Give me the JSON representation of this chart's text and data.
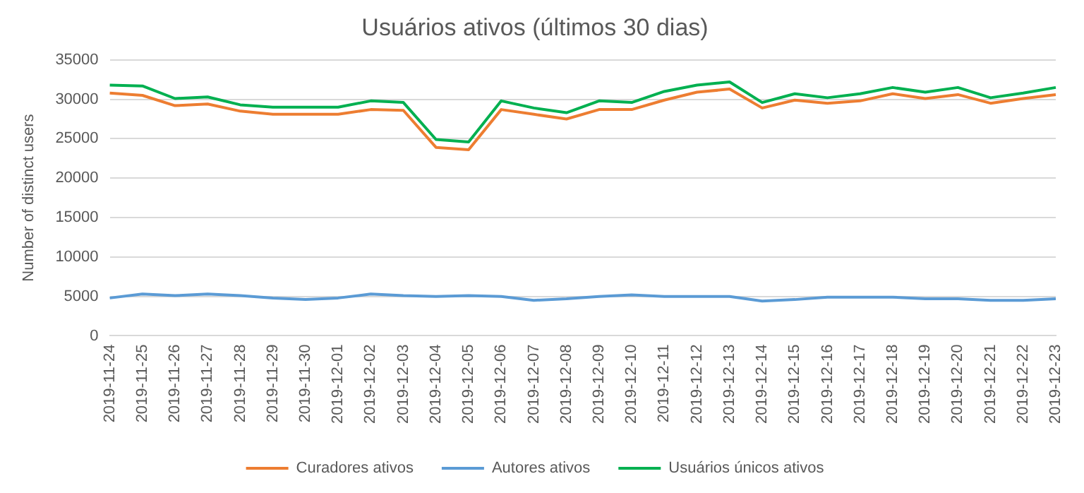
{
  "chart_data": {
    "type": "line",
    "title": "Usuários ativos (últimos 30 dias)",
    "ylabel": "Number of distinct users",
    "categories": [
      "2019-11-24",
      "2019-11-25",
      "2019-11-26",
      "2019-11-27",
      "2019-11-28",
      "2019-11-29",
      "2019-11-30",
      "2019-12-01",
      "2019-12-02",
      "2019-12-03",
      "2019-12-04",
      "2019-12-05",
      "2019-12-06",
      "2019-12-07",
      "2019-12-08",
      "2019-12-09",
      "2019-12-10",
      "2019-12-11",
      "2019-12-12",
      "2019-12-13",
      "2019-12-14",
      "2019-12-15",
      "2019-12-16",
      "2019-12-17",
      "2019-12-18",
      "2019-12-19",
      "2019-12-20",
      "2019-12-21",
      "2019-12-22",
      "2019-12-23"
    ],
    "series": [
      {
        "name": "Curadores ativos",
        "color": "#ed7d31",
        "values": [
          30800,
          30500,
          29200,
          29400,
          28500,
          28100,
          28100,
          28100,
          28700,
          28600,
          23900,
          23600,
          28700,
          28100,
          27500,
          28700,
          28700,
          29900,
          30900,
          31300,
          28900,
          29900,
          29500,
          29800,
          30700,
          30100,
          30600,
          29500,
          30100,
          30600
        ]
      },
      {
        "name": "Autores ativos",
        "color": "#5b9bd5",
        "values": [
          4800,
          5300,
          5100,
          5300,
          5100,
          4800,
          4600,
          4800,
          5300,
          5100,
          5000,
          5100,
          5000,
          4500,
          4700,
          5000,
          5200,
          5000,
          5000,
          5000,
          4400,
          4600,
          4900,
          4900,
          4900,
          4700,
          4700,
          4500,
          4500,
          4700
        ]
      },
      {
        "name": "Usuários únicos ativos",
        "color": "#00b050",
        "values": [
          31800,
          31700,
          30100,
          30300,
          29300,
          29000,
          29000,
          29000,
          29800,
          29600,
          24900,
          24600,
          29800,
          28900,
          28300,
          29800,
          29600,
          31000,
          31800,
          32200,
          29600,
          30700,
          30200,
          30700,
          31500,
          30900,
          31500,
          30200,
          30800,
          31500
        ]
      }
    ],
    "ylim": [
      0,
      35000
    ],
    "yticks": [
      0,
      5000,
      10000,
      15000,
      20000,
      25000,
      30000,
      35000
    ],
    "grid": "y",
    "legend": "bottom",
    "marker": "none",
    "line_style": "solid"
  }
}
